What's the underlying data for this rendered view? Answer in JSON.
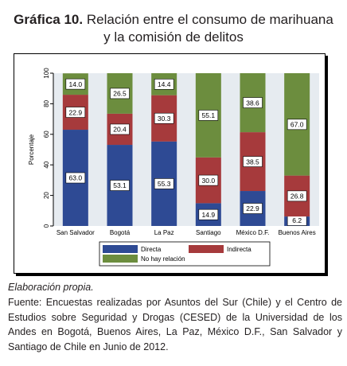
{
  "header": {
    "figure_number": "Gráfica 10.",
    "title_line1": "Relación entre el consumo de marihuana",
    "title_line2": "y la comisión de delitos"
  },
  "footer": {
    "elaboration": "Elaboración propia.",
    "source": "Fuente: Encuestas realizadas por Asuntos del Sur (Chile) y el Centro de Estudios sobre Seguridad y Drogas (CESED) de la Universidad de los Andes en Bogotá, Buenos Aires, La Paz, México D.F., San Salvador y Santiago de Chile en Junio de 2012."
  },
  "chart_data": {
    "type": "bar",
    "stacked": true,
    "categories": [
      "San Salvador",
      "Bogotá",
      "La Paz",
      "Santiago",
      "México D.F.",
      "Buenos Aires"
    ],
    "series": [
      {
        "name": "Directa",
        "color": "#2e4a94",
        "values": [
          63.0,
          53.1,
          55.3,
          14.9,
          22.9,
          6.2
        ]
      },
      {
        "name": "Indirecta",
        "color": "#a63a3c",
        "values": [
          22.9,
          20.4,
          30.3,
          30.0,
          38.5,
          26.8
        ]
      },
      {
        "name": "No hay relación",
        "color": "#6c8d3e",
        "values": [
          14.0,
          26.5,
          14.4,
          55.1,
          38.6,
          67.0
        ]
      }
    ],
    "data_labels": [
      [
        "63.0",
        "53.1",
        "55.3",
        "14.9",
        "22.9",
        "6.2"
      ],
      [
        "22.9",
        "20.4",
        "30.3",
        "30.0",
        "38.5",
        "26.8"
      ],
      [
        "14.0",
        "26.5",
        "14.4",
        "55.1",
        "38.6",
        "67.0"
      ]
    ],
    "ylabel": "Porcentaje",
    "ylim": [
      0,
      100
    ],
    "yticks": [
      "0",
      "20",
      "40",
      "60",
      "80",
      "100"
    ],
    "yticks_values": [
      0,
      20,
      40,
      60,
      80,
      100
    ],
    "legend_position": "bottom",
    "grid": false,
    "plot_background": "#e6ebf0",
    "frame_background": "#ffffff"
  }
}
